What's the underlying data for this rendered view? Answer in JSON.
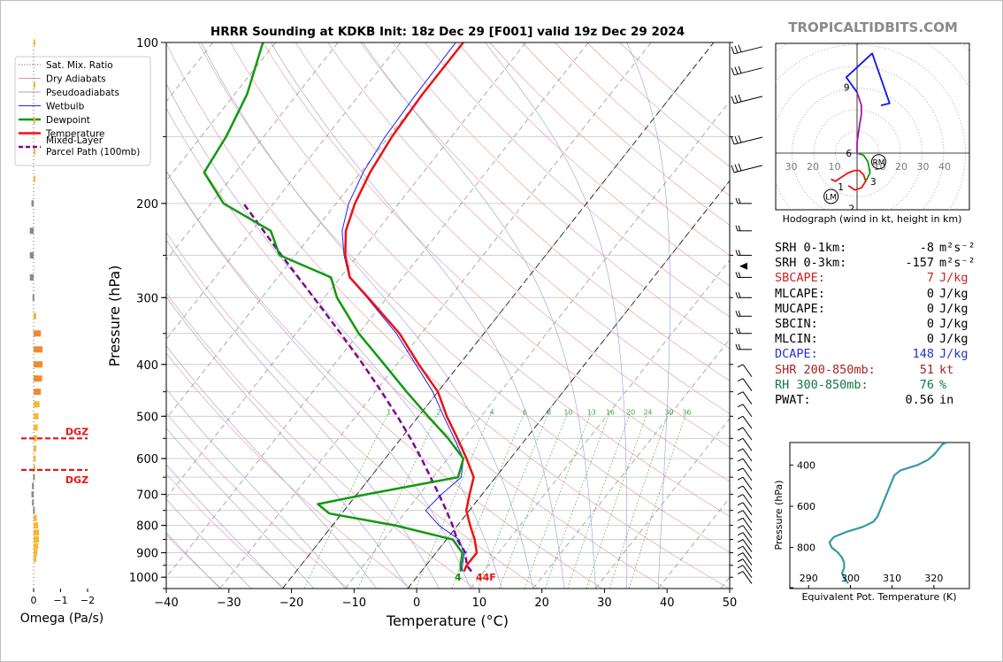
{
  "watermark": "TROPICALTIDBITS.COM",
  "chart_data": [
    {
      "type": "line",
      "name": "skew-t",
      "title": "HRRR Sounding at KDKB Init: 18z Dec 29 [F001] valid 19z Dec 29 2024",
      "xlabel": "Temperature (°C)",
      "ylabel": "Pressure (hPa)",
      "xlim": [
        -40,
        50
      ],
      "ylim": [
        1050,
        100
      ],
      "x_ticks": [
        -40,
        -30,
        -20,
        -10,
        0,
        10,
        20,
        30,
        40,
        50
      ],
      "x_tick_labels": [
        "−40",
        "−30",
        "−20",
        "−10",
        "0",
        "10",
        "20",
        "30",
        "40",
        "50"
      ],
      "y_ticks": [
        1000,
        900,
        800,
        700,
        600,
        500,
        400,
        300,
        200,
        100
      ],
      "y_scale": "log",
      "grid": true,
      "legend_position": "top-left",
      "legend": [
        "Sat. Mix. Ratio",
        "Dry Adiabats",
        "Pseudoadiabats",
        "Wetbulb",
        "Dewpoint",
        "Temperature",
        "Mixed-Layer\nParcel Path (100mb)"
      ],
      "colors": {
        "temperature": "#ee1111",
        "dewpoint": "#119911",
        "wetbulb": "#2222ee",
        "parcel": "#7a0a8a",
        "dry_adiabat": "#e49494",
        "moist_adiabat": "#9a9ad8",
        "mixing_ratio": "#66aa66"
      },
      "mixing_ratio_labels": [
        "1",
        "2",
        "4",
        "6",
        "8",
        "10",
        "13",
        "16",
        "20",
        "24",
        "30",
        "36"
      ],
      "surface_label": "44F",
      "series": [
        {
          "name": "Temperature",
          "p": [
            975,
            950,
            900,
            850,
            800,
            750,
            700,
            650,
            600,
            550,
            500,
            450,
            400,
            350,
            300,
            275,
            250,
            225,
            200,
            175,
            150,
            125,
            100
          ],
          "t": [
            6.8,
            6.5,
            6.5,
            4.5,
            2.0,
            -0.5,
            -2.0,
            -3.5,
            -7.0,
            -11.0,
            -15.5,
            -20.0,
            -26.5,
            -33.5,
            -43.0,
            -48.5,
            -52.0,
            -55.0,
            -57.0,
            -58.5,
            -59.5,
            -60.0,
            -60.0
          ]
        },
        {
          "name": "Dewpoint",
          "p": [
            975,
            950,
            900,
            850,
            800,
            760,
            730,
            700,
            650,
            600,
            550,
            500,
            450,
            400,
            350,
            300,
            275,
            250,
            225,
            200,
            175,
            150,
            125,
            100
          ],
          "t": [
            6.3,
            5.5,
            4.2,
            1.0,
            -10.0,
            -22.0,
            -25.0,
            -18.5,
            -6.0,
            -7.5,
            -12.5,
            -18.5,
            -25.0,
            -32.0,
            -40.0,
            -48.0,
            -51.5,
            -62.5,
            -67.0,
            -78.0,
            -85.0,
            -86.0,
            -88.0,
            -92.0
          ]
        },
        {
          "name": "Wetbulb",
          "p": [
            975,
            950,
            900,
            850,
            800,
            750,
            700,
            650,
            600,
            550,
            500,
            450,
            400,
            350,
            300,
            275,
            250,
            225,
            200,
            175,
            150,
            125,
            100
          ],
          "t": [
            6.5,
            5.8,
            4.5,
            2.0,
            -3.0,
            -7.0,
            -6.5,
            -5.5,
            -7.5,
            -11.5,
            -16.0,
            -20.8,
            -27.0,
            -34.0,
            -43.2,
            -48.6,
            -52.2,
            -55.6,
            -58.0,
            -59.6,
            -60.6,
            -61.0,
            -61.2
          ]
        },
        {
          "name": "Mixed-Layer Parcel Path (100mb)",
          "p": [
            975,
            950,
            900,
            850,
            800,
            750,
            700,
            650,
            600,
            550,
            500,
            450,
            400,
            350,
            300,
            250,
            200
          ],
          "t": [
            8.0,
            6.5,
            4.7,
            1.7,
            -0.8,
            -3.7,
            -6.9,
            -10.4,
            -14.2,
            -18.5,
            -23.4,
            -29.0,
            -35.4,
            -42.9,
            -51.7,
            -62.2,
            -74.8
          ]
        }
      ]
    },
    {
      "type": "bar",
      "name": "omega",
      "xlabel": "Omega (Pa/s)",
      "x_ticks": [
        0,
        -1,
        -2
      ],
      "x_tick_labels": [
        "0",
        "−1",
        "−2"
      ],
      "dgz_label": "DGZ",
      "dgz_pressures": [
        550,
        630
      ],
      "p": [
        100,
        120,
        140,
        160,
        180,
        200,
        225,
        250,
        275,
        300,
        325,
        350,
        375,
        400,
        425,
        450,
        475,
        500,
        525,
        550,
        575,
        600,
        625,
        650,
        675,
        700,
        725,
        750,
        775,
        800,
        825,
        850,
        875,
        900,
        925
      ],
      "omega": [
        -0.02,
        -0.03,
        -0.04,
        -0.03,
        -0.03,
        0.08,
        0.14,
        0.14,
        0.14,
        0.04,
        -0.1,
        -0.27,
        -0.33,
        -0.33,
        -0.31,
        -0.27,
        -0.22,
        -0.18,
        -0.15,
        -0.12,
        -0.1,
        -0.08,
        -0.04,
        0.02,
        0.06,
        0.08,
        0.06,
        0.02,
        -0.12,
        -0.17,
        -0.2,
        -0.2,
        -0.17,
        -0.14,
        -0.1
      ]
    },
    {
      "type": "line",
      "name": "hodograph",
      "xlabel": "Hodograph (wind in kt, height in km)",
      "ring_labels": [
        "30",
        "20",
        "10",
        "10",
        "20",
        "30",
        "40"
      ],
      "height_labels": [
        "1",
        "2",
        "3",
        "6",
        "9"
      ],
      "storm_motion_labels": [
        "RM",
        "LM"
      ],
      "series": [
        {
          "name": "0-1 km",
          "color": "#ee1111",
          "u": [
            -12,
            -10,
            -7,
            -4,
            -1,
            1
          ],
          "v": [
            -12,
            -13,
            -11,
            -9,
            -8,
            -8
          ]
        },
        {
          "name": "1-3 km",
          "color": "#ee1111",
          "u": [
            1,
            3,
            4,
            2,
            -1,
            -4
          ],
          "v": [
            -8,
            -10,
            -13,
            -16,
            -17,
            -15
          ]
        },
        {
          "name": "3-6 km",
          "color": "#119911",
          "u": [
            4,
            6,
            5,
            3,
            0
          ],
          "v": [
            -13,
            -9,
            -4,
            -1,
            0
          ]
        },
        {
          "name": "6-9 km",
          "color": "#aa11aa",
          "u": [
            0,
            0,
            1,
            2,
            2,
            0
          ],
          "v": [
            0,
            5,
            12,
            18,
            22,
            28
          ]
        },
        {
          "name": "9-12 km",
          "color": "#1111ee",
          "u": [
            0,
            -5,
            7,
            15,
            11
          ],
          "v": [
            28,
            35,
            46,
            23,
            22
          ]
        }
      ],
      "markers": [
        {
          "label": "RM",
          "u": 10,
          "v": -4
        },
        {
          "label": "LM",
          "u": -12,
          "v": -20
        }
      ]
    },
    {
      "type": "line",
      "name": "theta-e",
      "xlabel": "Equivalent Pot. Temperature (K)",
      "ylabel": "Pressure (hPa)",
      "x_ticks": [
        290,
        300,
        310,
        320
      ],
      "y_ticks": [
        400,
        600,
        800
      ],
      "series": [
        {
          "name": "Theta-e",
          "color": "#3399aa",
          "p": [
            975,
            950,
            925,
            900,
            875,
            850,
            825,
            800,
            775,
            750,
            725,
            700,
            675,
            650,
            625,
            600,
            575,
            550,
            525,
            500,
            475,
            450,
            425,
            400,
            375,
            350,
            325,
            300,
            290
          ],
          "theta": [
            299.5,
            298.5,
            298.0,
            298.5,
            298.5,
            298.0,
            297.0,
            295.5,
            295.0,
            296.0,
            299.0,
            303.0,
            305.5,
            306.5,
            307.0,
            307.5,
            308.0,
            308.5,
            309.0,
            309.5,
            310.0,
            310.5,
            312.0,
            316.0,
            318.5,
            320.0,
            321.0,
            322.0,
            323.0
          ]
        }
      ]
    }
  ],
  "stats": [
    {
      "label": "SRH 0-1km:",
      "value": "-8",
      "unit": "m²s⁻²",
      "color": "#000000"
    },
    {
      "label": "SRH 0-3km:",
      "value": "-157",
      "unit": "m²s⁻²",
      "color": "#000000"
    },
    {
      "label": "SBCAPE:",
      "value": "7",
      "unit": "J/kg",
      "color": "#cc2222"
    },
    {
      "label": "MLCAPE:",
      "value": "0",
      "unit": "J/kg",
      "color": "#000000"
    },
    {
      "label": "MUCAPE:",
      "value": "0",
      "unit": "J/kg",
      "color": "#000000"
    },
    {
      "label": "SBCIN:",
      "value": "0",
      "unit": "J/kg",
      "color": "#000000"
    },
    {
      "label": "MLCIN:",
      "value": "0",
      "unit": "J/kg",
      "color": "#000000"
    },
    {
      "label": "DCAPE:",
      "value": "148",
      "unit": "J/kg",
      "color": "#2233cc"
    },
    {
      "label": "SHR 200-850mb:",
      "value": "51",
      "unit": "kt",
      "color": "#aa2222"
    },
    {
      "label": "RH 300-850mb:",
      "value": "76",
      "unit": "%",
      "color": "#117744"
    },
    {
      "label": "PWAT:",
      "value": "0.56",
      "unit": "in",
      "color": "#000000"
    }
  ]
}
